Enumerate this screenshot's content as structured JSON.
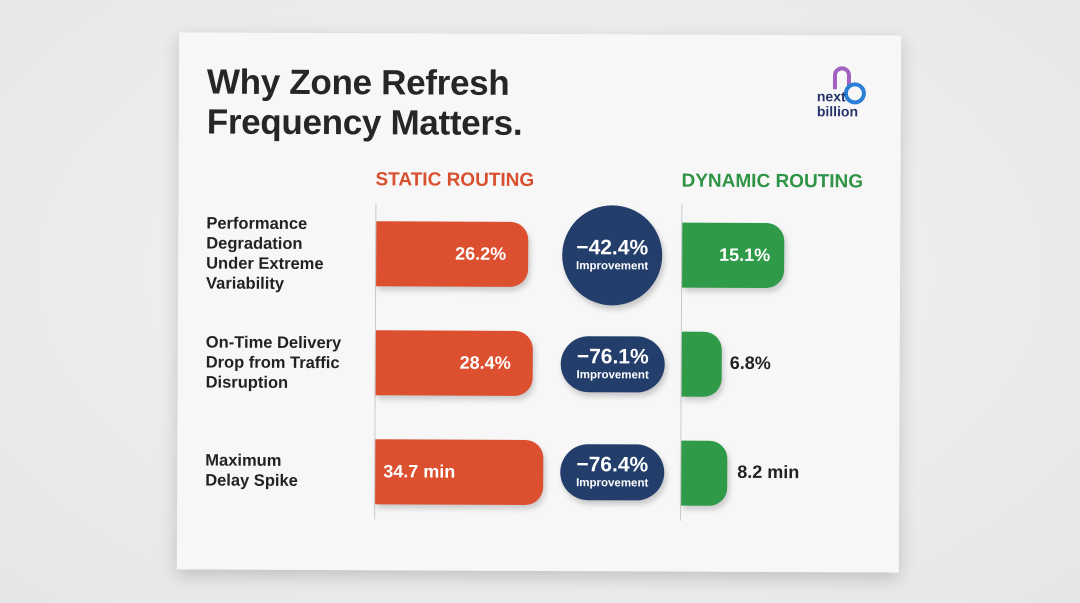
{
  "title_line1": "Why Zone Refresh",
  "title_line2": "Frequency Matters.",
  "logo": {
    "text_line1": "next",
    "text_line2": "billion",
    "colors": [
      "#a25fc0",
      "#2b7fd6"
    ]
  },
  "chart_data": {
    "type": "bar",
    "series": [
      {
        "name": "STATIC ROUTING",
        "color": "#dc4f2f"
      },
      {
        "name": "DYNAMIC ROUTING",
        "color": "#2f9a48"
      }
    ],
    "rows": [
      {
        "label_lines": [
          "Performance",
          "Degradation",
          "Under Extreme",
          "Variability"
        ],
        "static": "26.2%",
        "static_value": 26.2,
        "dynamic": "15.1%",
        "dynamic_value": 15.1,
        "change": "−42.4%",
        "change_label": "Improvement"
      },
      {
        "label_lines": [
          "On-Time Delivery",
          "Drop from Traffic",
          "Disruption"
        ],
        "static": "28.4%",
        "static_value": 28.4,
        "dynamic": "6.8%",
        "dynamic_value": 6.8,
        "change": "−76.1%",
        "change_label": "Improvement"
      },
      {
        "label_lines": [
          "Maximum",
          "Delay Spike"
        ],
        "static": "34.7 min",
        "static_value": 34.7,
        "dynamic": "8.2 min",
        "dynamic_value": 8.2,
        "change": "−76.4%",
        "change_label": "Improvement"
      }
    ],
    "badge_color": "#233e6b"
  }
}
